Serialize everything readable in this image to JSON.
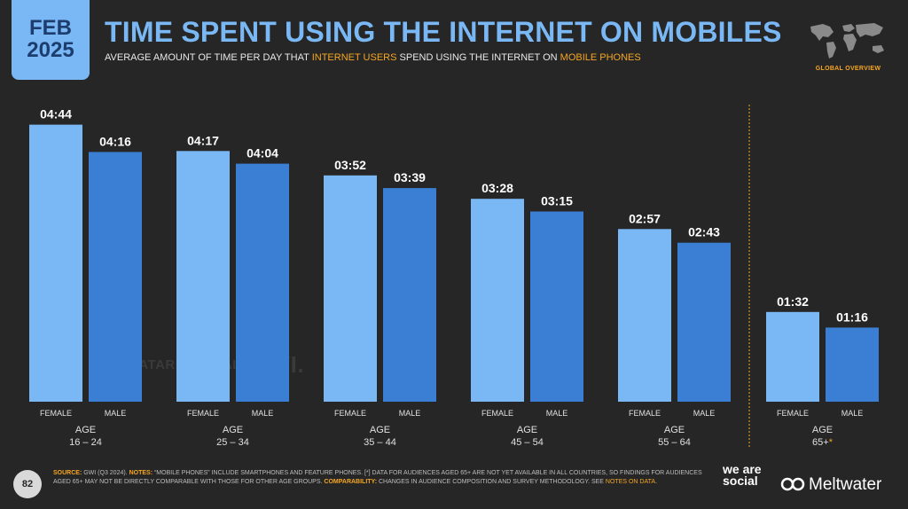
{
  "header": {
    "date_month": "FEB",
    "date_year": "2025",
    "title": "TIME SPENT USING THE INTERNET ON MOBILES",
    "subtitle_pre": "AVERAGE AMOUNT OF TIME PER DAY THAT ",
    "subtitle_hl1": "INTERNET USERS",
    "subtitle_mid": " SPEND USING THE INTERNET ON ",
    "subtitle_hl2": "MOBILE PHONES",
    "overview_label": "GLOBAL OVERVIEW",
    "map_icon": "world-map-icon"
  },
  "colors": {
    "background": "#262626",
    "female": "#7ab8f5",
    "male": "#3a7fd4",
    "accent": "#f5a623",
    "title": "#7ab8f5"
  },
  "chart_data": {
    "type": "bar",
    "categories": [
      "16 – 24",
      "25 – 34",
      "35 – 44",
      "45 – 54",
      "55 – 64",
      "65+"
    ],
    "category_prefix": "AGE",
    "category_suffix_marks": [
      "",
      "",
      "",
      "",
      "",
      "*"
    ],
    "series": [
      {
        "name": "FEMALE",
        "labels": [
          "04:44",
          "04:17",
          "03:52",
          "03:28",
          "02:57",
          "01:32"
        ],
        "values": [
          284,
          257,
          232,
          208,
          177,
          92
        ]
      },
      {
        "name": "MALE",
        "labels": [
          "04:16",
          "04:04",
          "03:39",
          "03:15",
          "02:43",
          "01:16"
        ],
        "values": [
          256,
          244,
          219,
          195,
          163,
          76
        ]
      }
    ],
    "unit": "minutes per day (shown as hh:mm)",
    "separator_before_last_group": true
  },
  "watermark": {
    "brand": "DATAREPORTAL",
    "partner": "GWI."
  },
  "footer": {
    "page_number": "82",
    "source_label": "SOURCE:",
    "source_text": " GWI (Q3 2024). ",
    "notes_label": "NOTES:",
    "notes_text": " “MOBILE PHONES” INCLUDE SMARTPHONES AND FEATURE PHONES. [*] DATA FOR AUDIENCES AGED 65+ ARE NOT YET AVAILABLE IN ALL COUNTRIES, SO FINDINGS FOR AUDIENCES AGED 65+ MAY NOT BE DIRECTLY COMPARABLE WITH THOSE FOR OTHER AGE GROUPS. ",
    "comparability_label": "COMPARABILITY:",
    "comparability_text": " CHANGES IN AUDIENCE COMPOSITION AND SURVEY METHODOLOGY. SEE ",
    "notes_link": "NOTES ON DATA",
    "notes_end": ".",
    "brand1": "we are social",
    "brand2": "Meltwater"
  }
}
